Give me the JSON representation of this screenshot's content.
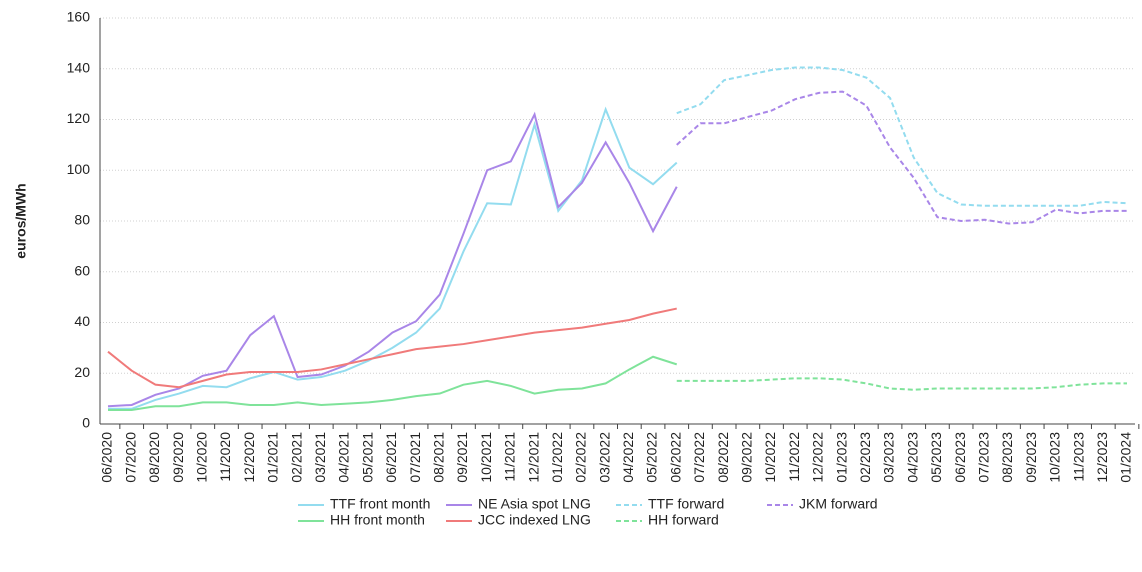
{
  "chart_data": {
    "type": "line",
    "y_label": "euros/MWh",
    "categories": [
      "06/2020",
      "07/2020",
      "08/2020",
      "09/2020",
      "10/2020",
      "11/2020",
      "12/2020",
      "01/2021",
      "02/2021",
      "03/2021",
      "04/2021",
      "05/2021",
      "06/2021",
      "07/2021",
      "08/2021",
      "09/2021",
      "10/2021",
      "11/2021",
      "12/2021",
      "01/2022",
      "02/2022",
      "03/2022",
      "04/2022",
      "05/2022",
      "06/2022",
      "07/2022",
      "08/2022",
      "09/2022",
      "10/2022",
      "11/2022",
      "12/2022",
      "01/2023",
      "02/2023",
      "03/2023",
      "04/2023",
      "05/2023",
      "06/2023",
      "07/2023",
      "08/2023",
      "09/2023",
      "10/2023",
      "11/2023",
      "12/2023",
      "01/2024"
    ],
    "ylim": [
      0,
      160
    ],
    "yticks": [
      0,
      20,
      40,
      60,
      80,
      100,
      120,
      140,
      160
    ],
    "grid": true,
    "legend": "bottom",
    "series": [
      {
        "name": "TTF front month",
        "color": "#93dcef",
        "dash": "solid",
        "values": [
          6,
          6,
          9.5,
          12,
          15,
          14.5,
          18,
          20.5,
          17.5,
          18.5,
          21,
          25,
          30,
          36,
          45.5,
          68,
          87,
          86.5,
          118,
          84,
          96,
          124,
          101,
          94.5,
          103,
          null,
          null,
          null,
          null,
          null,
          null,
          null,
          null,
          null,
          null,
          null,
          null,
          null,
          null,
          null,
          null,
          null,
          null,
          null
        ]
      },
      {
        "name": "HH front month",
        "color": "#7fe39a",
        "dash": "solid",
        "values": [
          5.5,
          5.5,
          7,
          7,
          8.5,
          8.5,
          7.5,
          7.5,
          8.5,
          7.5,
          8,
          8.5,
          9.5,
          11,
          12,
          15.5,
          17,
          15,
          12,
          13.5,
          14,
          16,
          21.5,
          26.5,
          23.5,
          null,
          null,
          null,
          null,
          null,
          null,
          null,
          null,
          null,
          null,
          null,
          null,
          null,
          null,
          null,
          null,
          null,
          null,
          null
        ]
      },
      {
        "name": "NE Asia spot LNG",
        "color": "#a986e8",
        "dash": "solid",
        "values": [
          7,
          7.5,
          11.5,
          14,
          19,
          21,
          35,
          42.5,
          18.5,
          19.5,
          23,
          28.5,
          36,
          40.5,
          51,
          75,
          100,
          103.5,
          122,
          85.5,
          95,
          111,
          95,
          76,
          93.5,
          null,
          null,
          null,
          null,
          null,
          null,
          null,
          null,
          null,
          null,
          null,
          null,
          null,
          null,
          null,
          null,
          null,
          null,
          null
        ]
      },
      {
        "name": "JCC indexed LNG",
        "color": "#f07a7a",
        "dash": "solid",
        "values": [
          28.5,
          21,
          15.5,
          14.5,
          17,
          19.5,
          20.5,
          20.5,
          20.5,
          21.5,
          23.5,
          25.5,
          27.5,
          29.5,
          30.5,
          31.5,
          33,
          34.5,
          36,
          37,
          38,
          39.5,
          41,
          43.5,
          45.5,
          null,
          null,
          null,
          null,
          null,
          null,
          null,
          null,
          null,
          null,
          null,
          null,
          null,
          null,
          null,
          null,
          null,
          null,
          null
        ]
      },
      {
        "name": "TTF forward",
        "color": "#93dcef",
        "dash": "dashed",
        "values": [
          null,
          null,
          null,
          null,
          null,
          null,
          null,
          null,
          null,
          null,
          null,
          null,
          null,
          null,
          null,
          null,
          null,
          null,
          null,
          null,
          null,
          null,
          null,
          null,
          122.5,
          126,
          135.5,
          137.5,
          139.5,
          140.5,
          140.5,
          139.5,
          136.5,
          128.5,
          105,
          91,
          86.5,
          86,
          86,
          86,
          86,
          86,
          87.5,
          87
        ]
      },
      {
        "name": "HH forward",
        "color": "#7fe39a",
        "dash": "dashed",
        "values": [
          null,
          null,
          null,
          null,
          null,
          null,
          null,
          null,
          null,
          null,
          null,
          null,
          null,
          null,
          null,
          null,
          null,
          null,
          null,
          null,
          null,
          null,
          null,
          null,
          17,
          17,
          17,
          17,
          17.5,
          18,
          18,
          17.5,
          16,
          14,
          13.5,
          14,
          14,
          14,
          14,
          14,
          14.5,
          15.5,
          16,
          16
        ]
      },
      {
        "name": "JKM forward",
        "color": "#a986e8",
        "dash": "dashed",
        "values": [
          null,
          null,
          null,
          null,
          null,
          null,
          null,
          null,
          null,
          null,
          null,
          null,
          null,
          null,
          null,
          null,
          null,
          null,
          null,
          null,
          null,
          null,
          null,
          null,
          110,
          118.5,
          118.5,
          121,
          123.5,
          128,
          130.5,
          131,
          125.5,
          109,
          97,
          81.5,
          80,
          80.5,
          79,
          79.5,
          84.5,
          83,
          84,
          84
        ]
      }
    ]
  }
}
